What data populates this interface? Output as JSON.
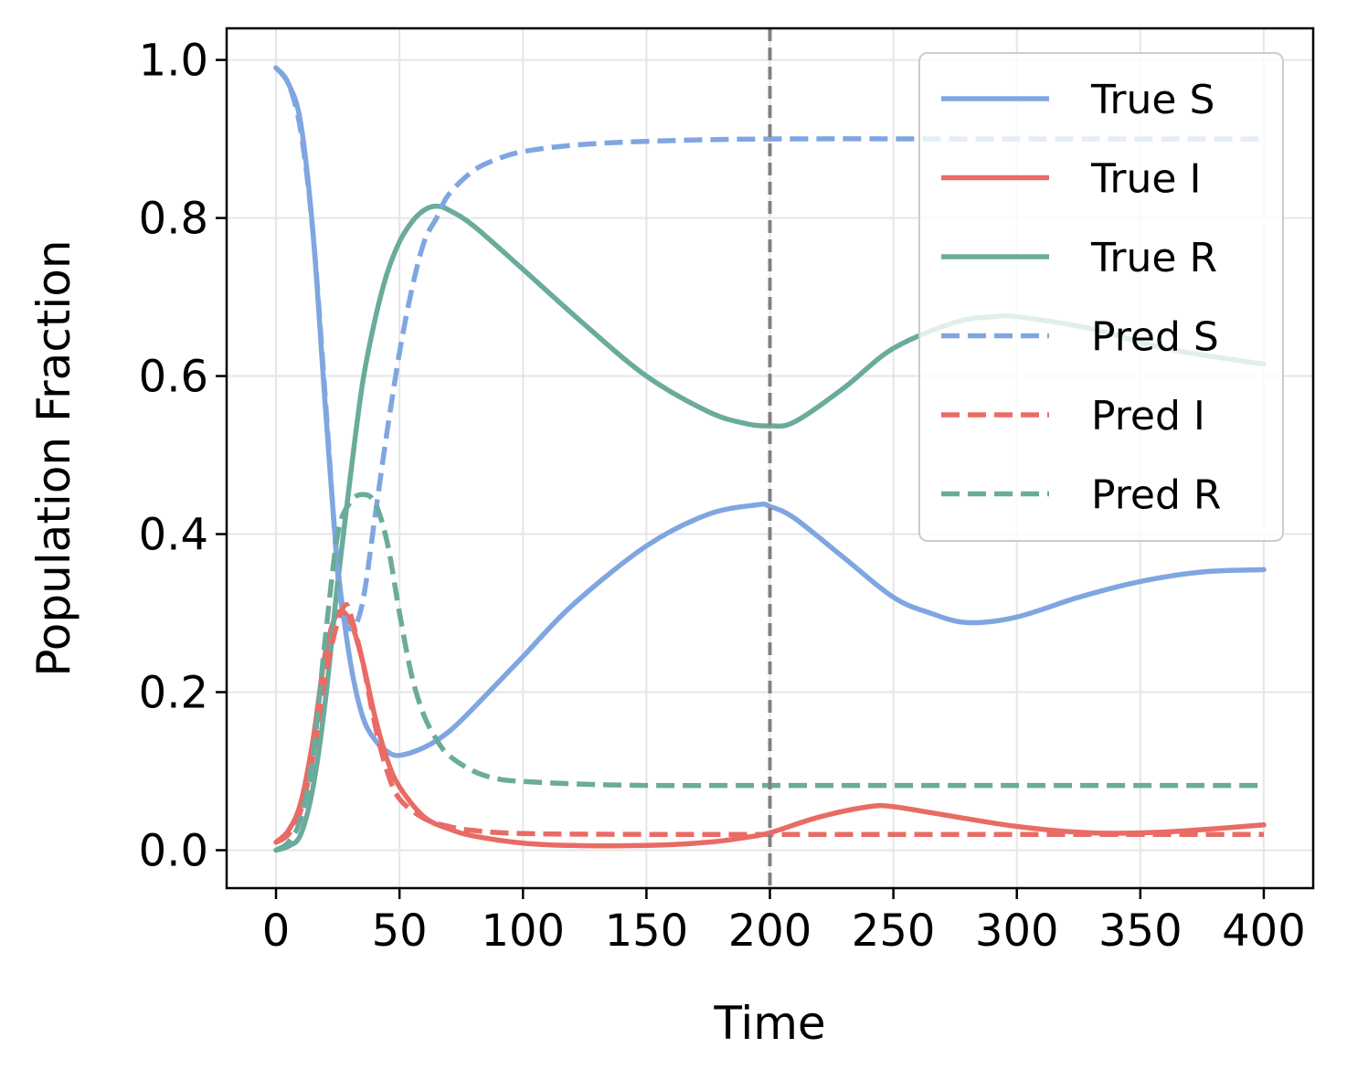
{
  "chart_data": {
    "type": "line",
    "title": "",
    "xlabel": "Time",
    "ylabel": "Population Fraction",
    "xlim": [
      -20,
      420
    ],
    "ylim": [
      -0.048,
      1.04
    ],
    "xticks": [
      0,
      50,
      100,
      150,
      200,
      250,
      300,
      350,
      400
    ],
    "yticks": [
      0.0,
      0.2,
      0.4,
      0.6,
      0.8,
      1.0
    ],
    "xtick_labels": [
      "0",
      "50",
      "100",
      "150",
      "200",
      "250",
      "300",
      "350",
      "400"
    ],
    "ytick_labels": [
      "0.0",
      "0.2",
      "0.4",
      "0.6",
      "0.8",
      "1.0"
    ],
    "grid": true,
    "legend_position": "top-right",
    "vline": {
      "x": 200,
      "style": "dashed",
      "color": "#808080"
    },
    "colors": {
      "S": "#7fa6e0",
      "I": "#e96b66",
      "R": "#6aab9c"
    },
    "series": [
      {
        "name": "True S",
        "style": "solid",
        "color": "#7fa6e0",
        "x": [
          0,
          5,
          10,
          15,
          20,
          25,
          30,
          35,
          40,
          45,
          50,
          60,
          70,
          80,
          100,
          120,
          150,
          175,
          195,
          200,
          210,
          230,
          250,
          265,
          280,
          300,
          325,
          350,
          375,
          400
        ],
        "y": [
          0.99,
          0.97,
          0.92,
          0.78,
          0.56,
          0.36,
          0.24,
          0.17,
          0.14,
          0.125,
          0.12,
          0.13,
          0.15,
          0.18,
          0.245,
          0.31,
          0.385,
          0.425,
          0.437,
          0.435,
          0.42,
          0.37,
          0.32,
          0.3,
          0.288,
          0.295,
          0.32,
          0.34,
          0.352,
          0.355
        ]
      },
      {
        "name": "True I",
        "style": "solid",
        "color": "#e96b66",
        "x": [
          0,
          5,
          10,
          15,
          20,
          25,
          30,
          35,
          40,
          45,
          50,
          60,
          70,
          80,
          100,
          120,
          150,
          175,
          190,
          200,
          220,
          240,
          250,
          270,
          300,
          330,
          360,
          400
        ],
        "y": [
          0.01,
          0.025,
          0.06,
          0.14,
          0.25,
          0.3,
          0.29,
          0.24,
          0.17,
          0.115,
          0.08,
          0.042,
          0.027,
          0.018,
          0.009,
          0.006,
          0.006,
          0.01,
          0.016,
          0.022,
          0.042,
          0.055,
          0.055,
          0.045,
          0.03,
          0.022,
          0.023,
          0.032
        ]
      },
      {
        "name": "True R",
        "style": "solid",
        "color": "#6aab9c",
        "x": [
          0,
          5,
          10,
          15,
          20,
          25,
          30,
          35,
          40,
          45,
          50,
          55,
          60,
          65,
          70,
          80,
          100,
          125,
          150,
          175,
          190,
          200,
          210,
          230,
          250,
          275,
          290,
          300,
          330,
          360,
          400
        ],
        "y": [
          0.0,
          0.005,
          0.02,
          0.08,
          0.19,
          0.34,
          0.47,
          0.59,
          0.67,
          0.73,
          0.77,
          0.795,
          0.81,
          0.815,
          0.81,
          0.79,
          0.735,
          0.665,
          0.6,
          0.555,
          0.54,
          0.537,
          0.542,
          0.585,
          0.635,
          0.668,
          0.675,
          0.675,
          0.66,
          0.635,
          0.615
        ]
      },
      {
        "name": "Pred S",
        "style": "dashed",
        "color": "#7fa6e0",
        "x": [
          0,
          5,
          10,
          15,
          20,
          25,
          28,
          30,
          33,
          36,
          40,
          45,
          50,
          55,
          60,
          65,
          70,
          80,
          90,
          100,
          120,
          150,
          200,
          300,
          400
        ],
        "y": [
          0.99,
          0.97,
          0.91,
          0.78,
          0.57,
          0.35,
          0.29,
          0.28,
          0.29,
          0.33,
          0.42,
          0.53,
          0.63,
          0.71,
          0.77,
          0.8,
          0.83,
          0.86,
          0.875,
          0.884,
          0.892,
          0.897,
          0.9,
          0.9,
          0.9
        ]
      },
      {
        "name": "Pred I",
        "style": "dashed",
        "color": "#e96b66",
        "x": [
          0,
          5,
          10,
          15,
          20,
          25,
          28,
          30,
          35,
          40,
          45,
          50,
          60,
          70,
          80,
          100,
          150,
          200,
          300,
          400
        ],
        "y": [
          0.01,
          0.02,
          0.05,
          0.12,
          0.22,
          0.29,
          0.31,
          0.3,
          0.24,
          0.16,
          0.1,
          0.065,
          0.04,
          0.03,
          0.025,
          0.021,
          0.02,
          0.02,
          0.02,
          0.02
        ]
      },
      {
        "name": "Pred R",
        "style": "dashed",
        "color": "#6aab9c",
        "x": [
          0,
          5,
          10,
          15,
          20,
          25,
          30,
          35,
          40,
          45,
          50,
          55,
          60,
          65,
          70,
          80,
          90,
          100,
          120,
          150,
          200,
          300,
          400
        ],
        "y": [
          0.0,
          0.01,
          0.04,
          0.12,
          0.27,
          0.4,
          0.44,
          0.45,
          0.44,
          0.39,
          0.3,
          0.22,
          0.17,
          0.14,
          0.12,
          0.1,
          0.09,
          0.087,
          0.084,
          0.082,
          0.082,
          0.082,
          0.082
        ]
      }
    ]
  }
}
